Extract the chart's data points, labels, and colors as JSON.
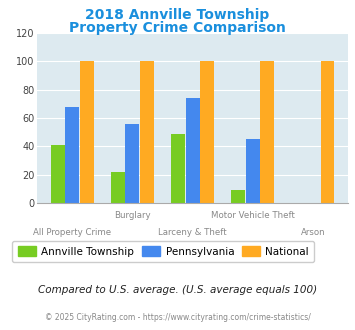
{
  "title_line1": "2018 Annville Township",
  "title_line2": "Property Crime Comparison",
  "title_color": "#1a8fdd",
  "categories": [
    "All Property Crime",
    "Burglary",
    "Larceny & Theft",
    "Motor Vehicle Theft",
    "Arson"
  ],
  "annville": [
    41,
    22,
    49,
    9,
    0
  ],
  "pennsylvania": [
    68,
    56,
    74,
    45,
    0
  ],
  "national": [
    100,
    100,
    100,
    100,
    100
  ],
  "colors": {
    "annville": "#77cc22",
    "pennsylvania": "#4488ee",
    "national": "#ffaa22"
  },
  "ylim": [
    0,
    120
  ],
  "yticks": [
    0,
    20,
    40,
    60,
    80,
    100,
    120
  ],
  "plot_bg": "#ddeaf0",
  "footnote": "Compared to U.S. average. (U.S. average equals 100)",
  "copyright": "© 2025 CityRating.com - https://www.cityrating.com/crime-statistics/",
  "legend_labels": [
    "Annville Township",
    "Pennsylvania",
    "National"
  ],
  "xlabels_top": [
    "",
    "Burglary",
    "",
    "Motor Vehicle Theft",
    ""
  ],
  "xlabels_bot": [
    "All Property Crime",
    "",
    "Larceny & Theft",
    "",
    "Arson"
  ]
}
